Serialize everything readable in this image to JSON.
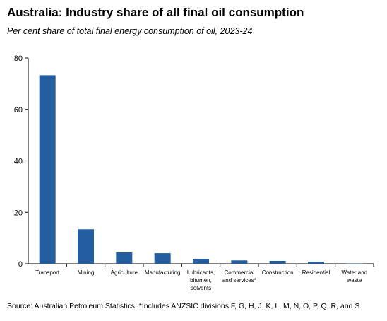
{
  "title": "Australia: Industry share of all final oil consumption",
  "subtitle": "Per cent share of total final energy consumption  of oil, 2023-24",
  "source": "Source: Australian Petroleum Statistics. *Includes ANZSIC divisions F, G, H, J, K, L, M, N, O, P, Q, R, and S.",
  "chart_data": {
    "type": "bar",
    "categories": [
      "Transport",
      "Mining",
      "Agriculture",
      "Manufacturing",
      "Lubricants, bitumen, solvents",
      "Commercial and services*",
      "Construction",
      "Residential",
      "Water and waste"
    ],
    "category_lines": [
      [
        "Transport"
      ],
      [
        "Mining"
      ],
      [
        "Agriculture"
      ],
      [
        "Manufacturing"
      ],
      [
        "Lubricants,",
        "bitumen,",
        "solvents"
      ],
      [
        "Commercial",
        "and services*"
      ],
      [
        "Construction"
      ],
      [
        "Residential"
      ],
      [
        "Water and",
        "waste"
      ]
    ],
    "values": [
      73.3,
      13.4,
      4.4,
      4.1,
      1.9,
      1.3,
      1.1,
      0.8,
      0.1
    ],
    "ylim": [
      0,
      80
    ],
    "yticks": [
      0,
      20,
      40,
      60,
      80
    ],
    "bar_color": "#255E9E",
    "grid": false,
    "legend": "none"
  }
}
